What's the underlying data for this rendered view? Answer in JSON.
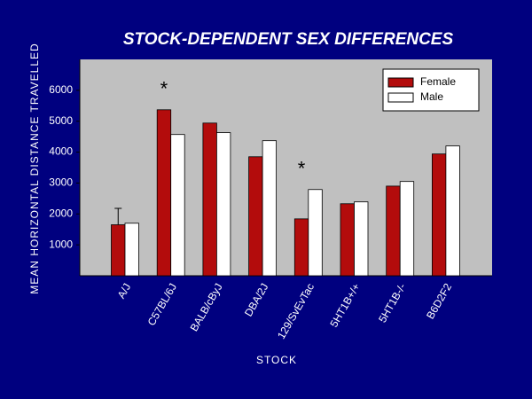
{
  "chart_data": {
    "type": "bar",
    "title": "STOCK-DEPENDENT SEX DIFFERENCES",
    "x_label": "STOCK",
    "y_label": "MEAN HORIZONTAL DISTANCE TRAVELLED",
    "categories": [
      "A/J",
      "C57BL/6J",
      "BALB/cByJ",
      "DBA/2J",
      "129/SvEvTac",
      "5HT1B+/+",
      "5HT1B-/-",
      "B6D2F2"
    ],
    "series": [
      {
        "name": "Female",
        "color": "#b30c0c",
        "values": [
          1650,
          5370,
          4940,
          3850,
          1840,
          2330,
          2900,
          3940
        ],
        "errors": [
          530,
          null,
          null,
          null,
          null,
          null,
          null,
          null
        ]
      },
      {
        "name": "Male",
        "color": "#ffffff",
        "values": [
          1700,
          4570,
          4630,
          4370,
          2790,
          2390,
          3050,
          4200
        ]
      }
    ],
    "annotations": [
      {
        "text": "*",
        "category": "C57BL/6J"
      },
      {
        "text": "*",
        "category": "129/SvEvTac"
      }
    ],
    "ylim": [
      0,
      7000
    ],
    "yticks": [
      1000,
      2000,
      3000,
      4000,
      5000,
      6000
    ],
    "legend": "top-right",
    "grid": false
  }
}
